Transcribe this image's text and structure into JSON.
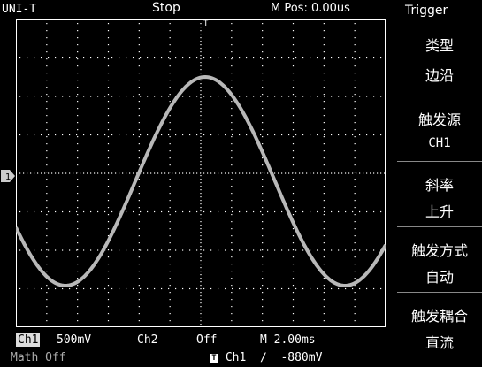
{
  "brand": "UNI-T",
  "status": "Stop",
  "mpos": "M Pos: 0.00us",
  "trigger_pin": "T",
  "ch1_marker": "1",
  "menu": {
    "title": "Trigger",
    "items": [
      {
        "label": "类型",
        "value": "边沿"
      },
      {
        "label": "触发源",
        "value": "CH1"
      },
      {
        "label": "斜率",
        "value": "上升"
      },
      {
        "label": "触发方式",
        "value": "自动"
      },
      {
        "label": "触发耦合",
        "value": "直流"
      }
    ]
  },
  "bottom": {
    "ch1_label": "Ch1",
    "ch1_scale": "500mV",
    "ch2_label": "Ch2",
    "ch2_value": "Off",
    "timebase": "M 2.00ms",
    "math": "Math Off",
    "trig_badge": "T",
    "trig_source": "Ch1",
    "trig_slope": "∕",
    "trig_level": "-880mV"
  },
  "colors": {
    "background": "#000000",
    "trace": "#b8b8b8",
    "grid": "#ffffff",
    "menu_separator": "#888888"
  }
}
